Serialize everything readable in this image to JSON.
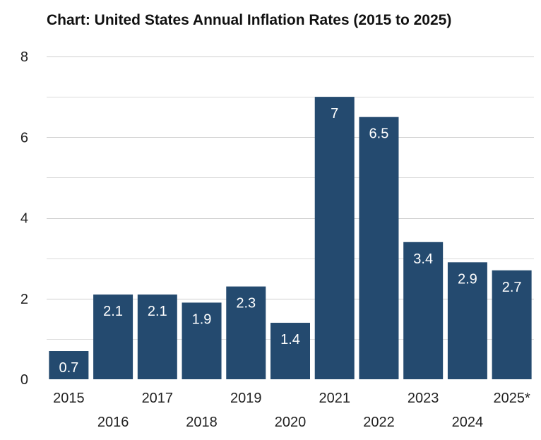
{
  "chart_data": {
    "type": "bar",
    "title": "Chart: United States Annual Inflation Rates (2015 to 2025)",
    "xlabel": "",
    "ylabel": "",
    "categories": [
      "2015",
      "2016",
      "2017",
      "2018",
      "2019",
      "2020",
      "2021",
      "2022",
      "2023",
      "2024",
      "2025*"
    ],
    "values": [
      0.7,
      2.1,
      2.1,
      1.9,
      2.3,
      1.4,
      7,
      6.5,
      3.4,
      2.9,
      2.7
    ],
    "data_labels": [
      "0.7",
      "2.1",
      "2.1",
      "1.9",
      "2.3",
      "1.4",
      "7",
      "6.5",
      "3.4",
      "2.9",
      "2.7"
    ],
    "ylim": [
      0,
      8
    ],
    "yticks": [
      0,
      2,
      4,
      6,
      8
    ],
    "ytick_labels": [
      "0",
      "2",
      "4",
      "6",
      "8"
    ],
    "grid": true,
    "legend": "none",
    "bar_color": "#244a6f"
  }
}
